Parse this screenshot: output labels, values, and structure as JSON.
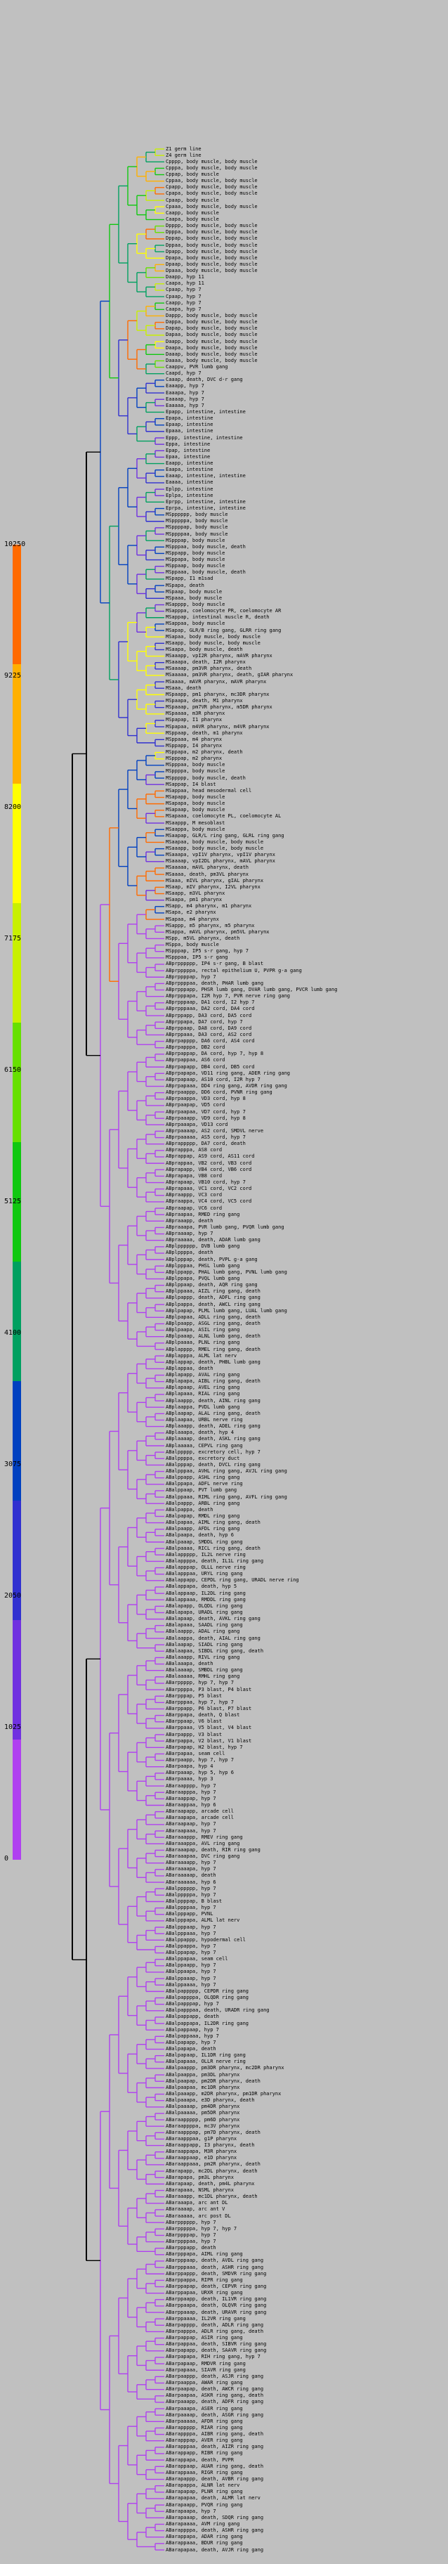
{
  "legend": {
    "ticks": [
      "10250",
      "9225",
      "8200",
      "7175",
      "6150",
      "5125",
      "4100",
      "3075",
      "2050",
      "1025",
      "0"
    ],
    "colors": [
      "#ff6a00",
      "#ffb000",
      "#ffff00",
      "#c8f000",
      "#66e000",
      "#10c810",
      "#00a060",
      "#0040c0",
      "#3030d0",
      "#7030e0",
      "#b040f0"
    ]
  },
  "leaves": [
    "Z1 germ line",
    "Z4 germ line",
    "Cpppp, body muscle, body muscle",
    "Cpppa, body muscle, body muscle",
    "Cppap, body muscle",
    "Cppaa, body muscle, body muscle",
    "Cpapp, body muscle, body muscle",
    "Cpapa, body muscle, body muscle",
    "Cpaap, body muscle",
    "Cpaaa, body muscle, body muscle",
    "Caapp, body muscle",
    "Caapa, body muscle",
    "Dpppp, body muscle, body muscle",
    "Dpppa, body muscle, body muscle",
    "Dppap, body muscle, body muscle",
    "Dppaa, body muscle, body muscle",
    "Dpapp, body muscle, body muscle",
    "Dpapa, body muscle, body muscle",
    "Dpaap, body muscle, body muscle",
    "Dpaaa, body muscle, body muscle",
    "Daapp, hyp 11",
    "Caapa, hyp 11",
    "Cpaap, hyp 7",
    "Cpaap, hyp 7",
    "Caapp, hyp 7",
    "Caapa, hyp 7",
    "Dappp, body muscle, body muscle",
    "Dappa, body muscle, body muscle",
    "Dapap, body muscle, body muscle",
    "Dapaa, body muscle, body muscle",
    "Daapp, body muscle, body muscle",
    "Daapa, body muscle, body muscle",
    "Daaap, body muscle, body muscle",
    "Daaaa, body muscle, body muscle",
    "Caappv, PVR lumb gang",
    "Caapd, hyp 7",
    "Caaap, death, DVC d-r gang",
    "Eaaapp, hyp 7",
    "Eaaapa, hyp 7",
    "Eaaaap, hyp 7",
    "Eaaaaa, hyp 7",
    "Epapp, intestine, intestine",
    "Epapa, intestine",
    "Epaap, intestine",
    "Epaaa, intestine",
    "Eppp, intestine, intestine",
    "Eppa, intestine",
    "Epap, intestine",
    "Epaa, intestine",
    "Eaapp, intestine",
    "Eaapa, intestine",
    "Eaaap, intestine, intestine",
    "Eaaaa, intestine",
    "Eplpp, intestine",
    "Eplpa, intestine",
    "Eprpp, intestine, intestine",
    "Eprpa, intestine, intestine",
    "MSpppppp, body muscle",
    "MSpppppa, body muscle",
    "MSppppap, body muscle",
    "MSppppaa, body muscle",
    "MSpppap, body muscle",
    "MSpppaa, body muscle, death",
    "MSppapp, body muscle",
    "MSppapa, body muscle",
    "MSppaap, body muscle",
    "MSppaaa, body muscle, death",
    "MSpapp, I1 m1sad",
    "MSpapa, death",
    "MSpaap, body muscle",
    "MSpaaa, body muscle",
    "MSapppp, body muscle",
    "MSapppa, coelomocyte PR, coelomocyte AR",
    "MSappap, intestinal muscle R, death",
    "MSappaa, body muscle",
    "MSapap, GLR/B ring gang, GLRR ring gang",
    "MSapaa, body muscle, body muscle",
    "MSaapp, body muscle, body muscle",
    "MSaapa, body muscle, death",
    "MSaaapp, vpI2R pharynx, mAVR pharynx",
    "MSaaapa, death, I2R pharynx",
    "MSaaaap, pm3VR pharynx, death",
    "MSaaaaa, pm3VR pharynx, death, gIAR pharynx",
    "MSaaaa, mAVR pharynx, mAVR pharynx",
    "MSaaa, death",
    "MSpaapp, pm1 pharynx, mc3DR pharynx",
    "MSpaapa, death, M1 pharynx",
    "MSpaaap, pm7VR pharynx, m5DR pharynx",
    "MSpaaaa, m3R pharynx",
    "MSpapap, I1 pharynx",
    "MSpapaa, m4VR pharynx, m4VR pharynx",
    "MSppaap, death, m1 pharynx",
    "MSppaaa, m4 pharynx",
    "MSppapp, I4 pharynx",
    "MSppapa, m2 pharynx, death",
    "MSpppap, m2 pharynx",
    "MSpppaa, body muscle",
    "MSppppa, body muscle",
    "MSppppp, body muscle, death",
    "MSappap, I4 blast",
    "MSappaa, head mesodermal cell",
    "MSapapp, body muscle",
    "MSapapa, body muscle",
    "MSapaap, body muscle",
    "MSapaaa, coelomocyte PL, coelomocyte AL",
    "MSaappp, M mesoblast",
    "MSaappa, body muscle",
    "MSaapap, GLR/L ring gang, GLRL ring gang",
    "MSaapaa, body muscle, body muscle",
    "MSaaapp, body muscle, body muscle",
    "MSaaapa, vpI1V pharynx, vpI1V pharynx",
    "MSaaaap, vpI2DL pharynx, mAVL pharynx",
    "MSaaaaa, mAVL pharynx, death",
    "MSaaaa, death, pm3VL pharynx",
    "MSaaa, mIVL pharynx, gIAL pharynx",
    "MSaap, mIV pharynx, I2VL pharynx",
    "MSaapp, m3VL pharynx",
    "MSaapa, pm1 pharynx",
    "MSapp, m4 pharynx, m1 pharynx",
    "MSapa, e2 pharynx",
    "MSapaa, m4 pharynx",
    "MSappp, m5 pharynx, m5 pharynx",
    "MSappa, mAVL pharynx, pm5VL pharynx",
    "MSpp, m5VL pharynx, death",
    "MSppa, body muscle",
    "MSpppap, IP5 s-r gang, hyp 7",
    "MSpppaa, IP5 s-r gang",
    "ABprpppppp, IP4 s-r gang, B blast",
    "ABprpppppa, rectal epithelium U, PVPR g-a gang",
    "ABprppppap, hyp 7",
    "ABprppppaa, death, PHAR lumb gang",
    "ABprpppapp, PHSR lumb gang, DVAR lumb gang, PVCR lumb gang",
    "ABprpppapa, I2R hyp 7, PVR nerve ring gang",
    "ABprpppaap, DA1 cord, I2 hyp 7",
    "ABprpppaaa, DA2 cord, DA4 cord",
    "ABprppapp, DA3 cord, DA5 cord",
    "ABprppapa, DA7 cord, hyp 7",
    "ABprppaap, DA8 cord, DA9 cord",
    "ABprppaaa, DA3 cord, AS2 cord",
    "ABprpapppp, DA6 cord, AS4 cord",
    "ABprpapppa, DB2 cord",
    "ABprpappap, DA cord, hyp 7, hyp 8",
    "ABprpappaa, AS6 cord",
    "ABprpapapp, DB4 cord, DB5 cord",
    "ABprpapapa, VD11 ring gang, ADER ring gang",
    "ABprpapaap, AS10 cord, I2R hyp 7",
    "ABprpapaaa, DD4 ring gang, AVDR ring gang",
    "ABprpaappp, DD6 cord, PVNR ring gang",
    "ABprpaappa, VD3 cord, hyp 8",
    "ABprpaapap, VD5 cord",
    "ABprpaapaa, VD7 cord, hyp 7",
    "ABprpaaapp, VD9 cord, hyp 8",
    "ABprpaaapa, VD13 cord",
    "ABprpaaaap, AS2 cord, SMDVL nerve",
    "ABprpaaaaa, AS5 cord, hyp 7",
    "ABprappppp, DA7 cord, death",
    "ABprapppa, AS8 cord",
    "ABprappap, AS9 cord, AS11 cord",
    "ABprappaa, VB2 cord, VB3 cord",
    "ABprapapp, VB4 cord, VB6 cord",
    "ABprapapa, VB8 cord",
    "ABprapaap, VB10 cord, hyp 7",
    "ABprapaaa, VC1 cord, VC2 cord",
    "ABpraappp, VC3 cord",
    "ABpraappa, VC4 cord, VC5 cord",
    "ABpraapap, VC6 cord",
    "ABpraapaa, RMED ring gang",
    "ABpraaapp, death",
    "ABpraaapa, PVR lumb gang, PVQR lumb gang",
    "ABpraaaap, hyp 7",
    "ABpraaaaa, death, ADAR lumb gang",
    "ABplpppppp, DVB lumb gang",
    "ABplppppa, death",
    "ABplpppap, death, PVPL g-a gang",
    "ABplpppaa, PHSL lumb gang",
    "ABplppapp, PHAL lumb gang, PVNL lumb gang",
    "ABplppapa, PVQL lumb gang",
    "ABplppaap, death, AQR ring gang",
    "ABplppaaa, AIZL ring gang, death",
    "ABplpappp, death, ADFL ring gang",
    "ABplpappa, death, AWCL ring gang",
    "ABplpapap, PLML lumb gang, LUAL lumb gang",
    "ABplpapaa, ADLL ring gang, death",
    "ABplpaapp, ASGL ring gang, death",
    "ABplpaapa, ASIL ring gang",
    "ABplpaaap, ALNL lumb gang, death",
    "ABplpaaaa, PLNL ring gang",
    "ABplapppp, RMEL ring gang, death",
    "ABplapppa, ALML lat nerv",
    "ABplappap, death, PHBL lumb gang",
    "ABplappaa, death",
    "ABplapapp, AVAL ring gang",
    "ABplapapa, AIBL ring gang, death",
    "ABplapaap, AVEL ring gang",
    "ABplapaaa, RIAL ring gang",
    "ABplaappp, death, AINL ring gang",
    "ABplaappa, PVDL lumb gang",
    "ABplaapap, ALAL ring gang, death",
    "ABplaapaa, URBL nerve ring",
    "ABplaaapp, death, ADEL ring gang",
    "ABplaaapa, death, hyp 4",
    "ABplaaaap, death, ASKL ring gang",
    "ABplaaaaa, CEPVL ring gang",
    "ABalppppp, excretory cell, hyp 7",
    "ABalppppa, excretory duct",
    "ABalpppap, death, DVCL ring gang",
    "ABalpppaa, AVHL ring gang, AVJL ring gang",
    "ABalppapp, ASHL ring gang",
    "ABalppapa, ADFL nerve ring",
    "ABalppaap, PVT lumb gang",
    "ABalppaaa, RIML ring gang, AVFL ring gang",
    "ABalpappp, ARBL ring gang",
    "ABalpappa, death",
    "ABalpapap, RMDL ring gang",
    "ABalpapaa, AIML ring gang, death",
    "ABalpaapp, AFDL ring gang",
    "ABalpaapa, death, hyp 6",
    "ABalpaaap, SMDDL ring gang",
    "ABalpaaaa, RICL ring gang, death",
    "ABalappppp, IL2L nerve ring",
    "ABalappppa, death, IL1L ring gang",
    "ABalapppap, OLLL nerve ring",
    "ABalapppaa, URYL ring gang",
    "ABalappapp, CEPDL ring gang, URADL nerve ring",
    "ABalappapa, death, hyp 5",
    "ABalappaap, IL2DL ring gang",
    "ABalappaaa, RMDDL ring gang",
    "ABalapapp, OLQDL ring gang",
    "ABalapapa, URADL ring gang",
    "ABalapaap, death, AVKL ring gang",
    "ABalapaaa, SAADL ring gang",
    "ABalaappp, ADAL ring gang",
    "ABalaappa, death, AIAL ring gang",
    "ABalaapap, SIADL ring gang",
    "ABalaapaa, SIBDL ring gang, death",
    "ABalaaapp, RIVL ring gang",
    "ABalaaapa, death",
    "ABalaaaap, SMBDL ring gang",
    "ABalaaaaa, RMHL ring gang",
    "ABarppppp, hyp 7, hyp 7",
    "ABarppppa, P3 blast, P4 blast",
    "ABarpppap, P5 blast",
    "ABarpppaa, hyp 7, hyp 7",
    "ABarppapp, P6 blast, P7 blast",
    "ABarppapa, death, Q blast",
    "ABarppaap, V6 blast",
    "ABarppaaa, V5 blast, V4 blast",
    "ABarpappp, V3 blast",
    "ABarpappa, V2 blast, V1 blast",
    "ABarpapap, H2 blast, hyp 7",
    "ABarpapaa, seam cell",
    "ABarpaapp, hyp 7, hyp 7",
    "ABarpaapa, hyp 4",
    "ABarpaaap, hyp 5, hyp 6",
    "ABarpaaaa, hyp 3",
    "ABaraapppp, hyp 7",
    "ABaraapppa, hyp 7",
    "ABaraappap, hyp 7",
    "ABaraappaa, hyp 6",
    "ABaraapapp, arcade cell",
    "ABaraapapa, arcade cell",
    "ABaraapaap, hyp 7",
    "ABaraapaaa, hyp 7",
    "ABaraaappp, RMEV ring gang",
    "ABaraaappa, AVL ring gang",
    "ABaraaapap, death, RIR ring gang",
    "ABaraaapaa, DVC ring gang",
    "ABaraaaapp, hyp 7",
    "ABaraaaapa, hyp 7",
    "ABaraaaaap, death",
    "ABaraaaaaa, hyp 6",
    "ABalpppppp, hyp 7",
    "ABalpppppa, hyp 7",
    "ABalppppap, B blast",
    "ABalppppaa, hyp 7",
    "ABalpppapp, PVNL",
    "ABalpppapa, ALML lat nerv",
    "ABalpppaap, hyp 7",
    "ABalpppaaa, hyp 7",
    "ABalppappp, hypodermal cell",
    "ABalppappa, hyp 7",
    "ABalppapap, hyp 7",
    "ABalppapaa, seam cell",
    "ABalppaapp, hyp 7",
    "ABalppaapa, hyp 7",
    "ABalppaaap, hyp 7",
    "ABalppaaaa, hyp 7",
    "ABalpappppp, CEPDR ring gang",
    "ABalpappppa, OLQDR ring gang",
    "ABalpapppap, hyp 7",
    "ABalpapppaa, death, URADR ring gang",
    "ABalpappapp, death",
    "ABalpappapa, IL2DR ring gang",
    "ABalpappaap, hyp 7",
    "ABalpappaaa, hyp 7",
    "ABalpapapp, hyp 7",
    "ABalpapapa, death",
    "ABalpapaap, IL1DR ring gang",
    "ABalpapaaa, OLLR nerve ring",
    "ABalpaappp, pm3DR pharynx, mc2DR pharynx",
    "ABalpaappa, pm3DL pharynx",
    "ABalpaapap, pm2DR pharynx, death",
    "ABalpaapaa, mc1DR pharynx",
    "ABalpaaapp, m2DR pharynx, pm1DR pharynx",
    "ABalpaaapa, e3D pharynx, death",
    "ABalpaaaap, pm4DR pharynx",
    "ABalpaaaaa, pm5DR pharynx",
    "ABaraappppp, pm6D pharynx",
    "ABaraappppa, mc3V pharynx",
    "ABaraapppap, pm7D pharynx, death",
    "ABaraapppaa, g1P pharynx",
    "ABaraappapp, I3 pharynx, death",
    "ABaraappapa, M3R pharynx",
    "ABaraappaap, e1D pharynx",
    "ABaraappaaa, pm2R pharynx, death",
    "ABarapapp, mc2DL pharynx, death",
    "ABarapapa, pm3L pharynx",
    "ABarapaap, death, pm4L pharynx",
    "ABarapaaa, NSML pharynx",
    "ABaraaapp, mc1DL pharynx, death",
    "ABaraaapa, arc ant DL",
    "ABaraaaap, arc ant V",
    "ABaraaaaa, arc post DL",
    "ABarpppppp, hyp 7",
    "ABarpppppa, hyp 7, hyp 7",
    "ABarppppap, hyp 7",
    "ABarppppaa, hyp 7",
    "ABarpppapp, death",
    "ABarpppapa, AIML ring gang",
    "ABarpppaap, death, AVDL ring gang",
    "ABarpppaaa, death, ASHR ring gang",
    "ABarppappp, death, SMDVR ring gang",
    "ABarppappa, RIPR ring gang",
    "ABarppapap, death, CEPVR ring gang",
    "ABarppapaa, URXR ring gang",
    "ABarppaapp, death, IL1VR ring gang",
    "ABarppaapa, death, OLQVR ring gang",
    "ABarppaaap, death, URAVR ring gang",
    "ABarppaaaa, IL2VR ring gang",
    "ABarpapppp, death, ADLR ring gang",
    "ABarpapppa, ADLR ring gang, death",
    "ABarpappap, ASIR ring gang",
    "ABarpappaa, death, SIBVR ring gang",
    "ABarpapapp, death, SAAVR ring gang",
    "ABarpapapa, RIH ring gang, hyp 7",
    "ABarpapaap, RMDVR ring gang",
    "ABarpapaaa, SIAVR ring gang",
    "ABarpaappp, death, ASJR ring gang",
    "ABarpaappa, AWAR ring gang",
    "ABarpaapap, death, AWCR ring gang",
    "ABarpaapaa, ASKR ring gang, death",
    "ABarpaaapp, death, ADFR ring gang",
    "ABarpaaapa, ASER ring gang",
    "ABarpaaaap, death, ASGR ring gang",
    "ABarpaaaaa, AFDR ring gang",
    "ABarappppp, RIAR ring gang",
    "ABarappppa, AIBR ring gang, death",
    "ABarapppap, AVER ring gang",
    "ABarapppaa, death, AIZR ring gang",
    "ABarappapp, RIBR ring gang",
    "ABarappapa, death, PVPR",
    "ABarappaap, AUAR ring gang, death",
    "ABarappaaa, RIGR ring gang",
    "ABarapappp, death, AVBR ring gang",
    "ABarapappa, ALNR lat nerv",
    "ABarapapap, PLNR ring gang",
    "ABarapapaa, death, ALMR lat nerv",
    "ABarapaapp, PVQR ring gang",
    "ABarapaapa, hyp 7",
    "ABarapaaap, death, SDQR ring gang",
    "ABarapaaaa, AVM ring gang",
    "ABarappppa, death, ASHR ring gang",
    "ABarappapa, ADAR ring gang",
    "ABarappaaa, BDUR ring gang",
    "ABarapapaa, death, AVJR ring gang"
  ]
}
